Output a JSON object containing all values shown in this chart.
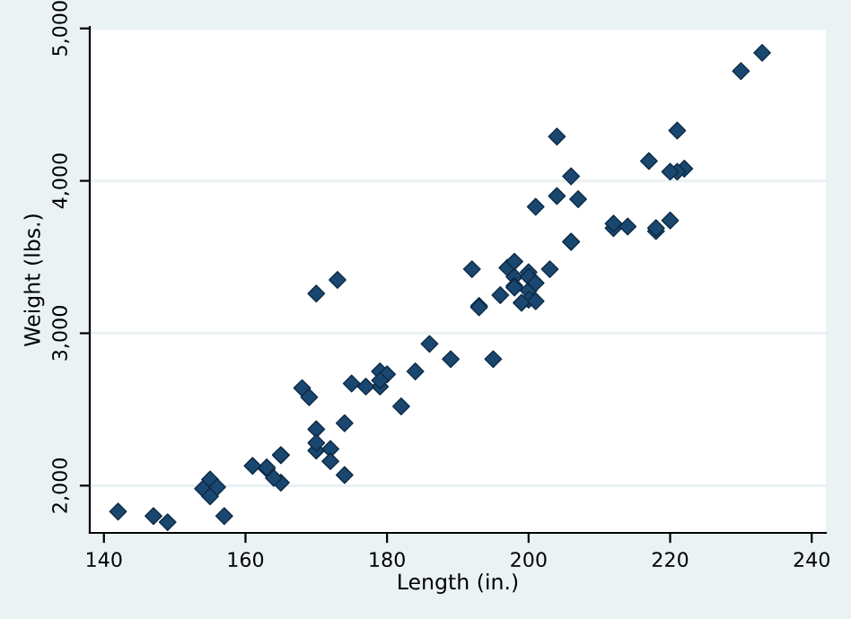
{
  "chart_data": {
    "type": "scatter",
    "xlabel": "Length (in.)",
    "ylabel": "Weight (lbs.)",
    "x": [
      186,
      173,
      168,
      196,
      222,
      218,
      170,
      200,
      207,
      200,
      221,
      204,
      204,
      163,
      212,
      193,
      200,
      179,
      197,
      163,
      206,
      206,
      220,
      147,
      179,
      233,
      230,
      201,
      169,
      221,
      212,
      198,
      217,
      195,
      220,
      198,
      198,
      218,
      200,
      180,
      206,
      170,
      157,
      165,
      182,
      201,
      214,
      198,
      201,
      199,
      203,
      179,
      189,
      174,
      177,
      170,
      165,
      170,
      184,
      161,
      172,
      149,
      154,
      192,
      142,
      164,
      174,
      165,
      175,
      172,
      155,
      155,
      156,
      193
    ],
    "series": [
      {
        "color": "#1a476f",
        "values": [
          2930,
          3350,
          2640,
          3250,
          4080,
          3670,
          2230,
          3280,
          3880,
          3400,
          4330,
          3900,
          4290,
          2110,
          3690,
          3180,
          3220,
          2750,
          3430,
          2120,
          3600,
          3600,
          3740,
          1800,
          2650,
          4840,
          4720,
          3830,
          2580,
          4060,
          3720,
          3370,
          4130,
          2830,
          4060,
          3310,
          3300,
          3690,
          3370,
          2730,
          4030,
          3260,
          1800,
          2200,
          2520,
          3330,
          3700,
          3470,
          3210,
          3200,
          3420,
          2690,
          2830,
          2070,
          2650,
          2370,
          2020,
          2280,
          2750,
          2130,
          2240,
          1760,
          1980,
          3420,
          1830,
          2050,
          2410,
          2200,
          2670,
          2160,
          2040,
          1930,
          1990,
          3170
        ]
      }
    ],
    "xlim": [
      138,
      242
    ],
    "xticks": [
      140,
      160,
      180,
      200,
      220,
      240
    ],
    "ylim": [
      1690,
      5010
    ],
    "yticks": [
      {
        "value": 2000,
        "label": "2,000"
      },
      {
        "value": 3000,
        "label": "3,000"
      },
      {
        "value": 4000,
        "label": "4,000"
      },
      {
        "value": 5000,
        "label": "5,000"
      }
    ],
    "grid": "y",
    "marker": "diamond"
  }
}
